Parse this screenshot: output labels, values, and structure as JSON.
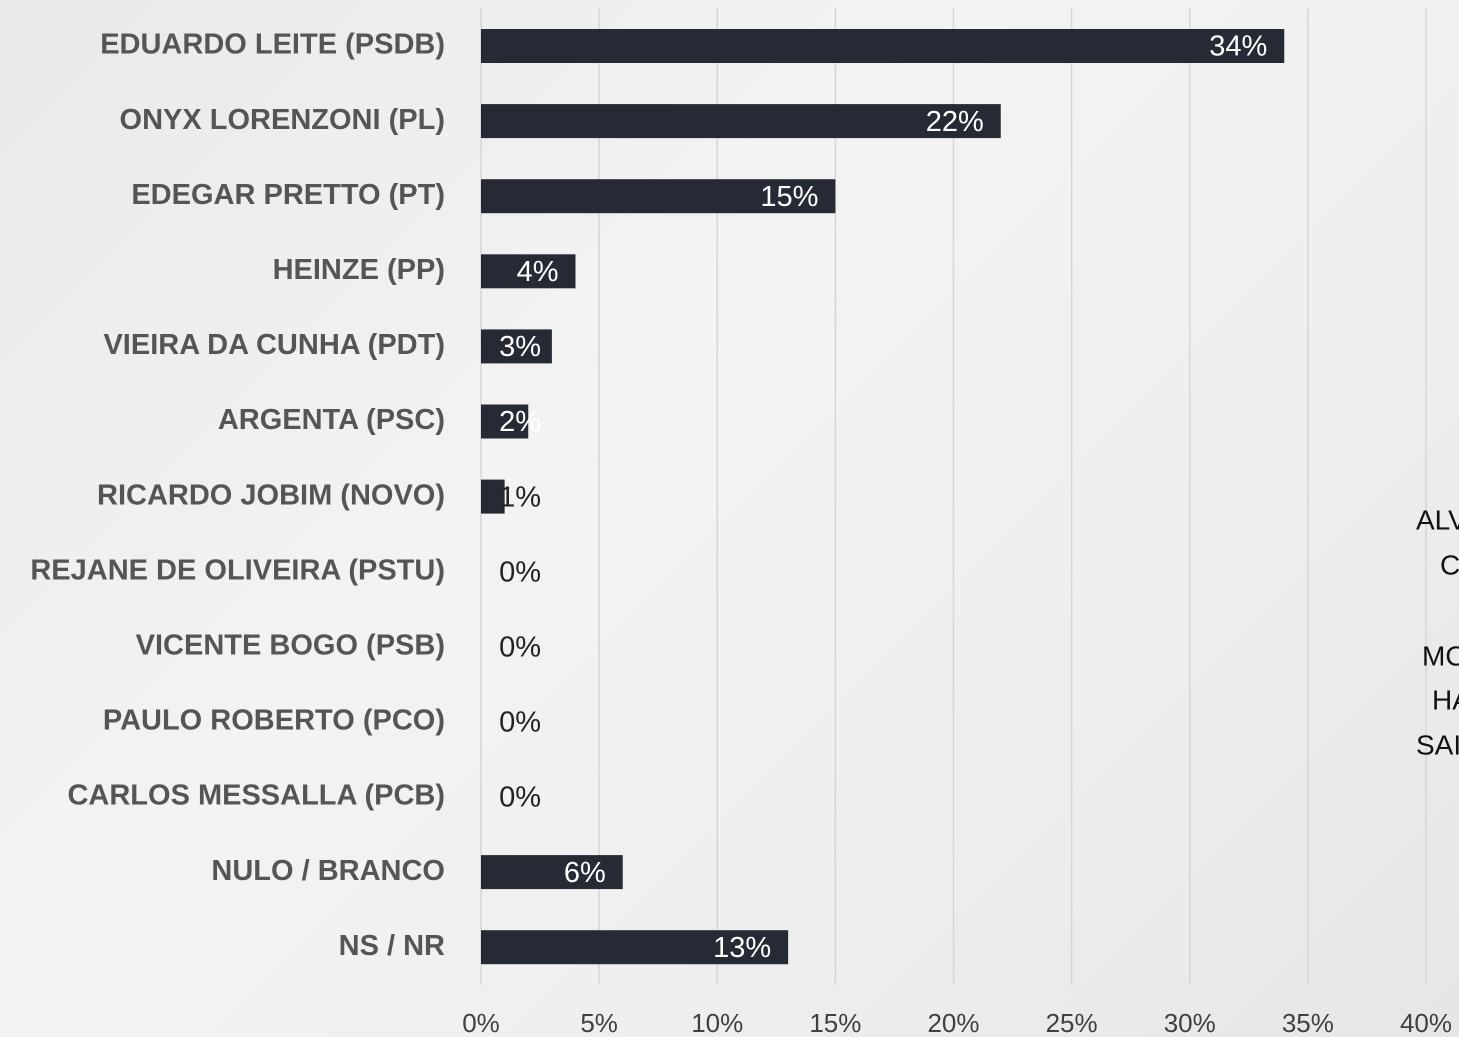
{
  "chart_data": {
    "type": "barh",
    "categories": [
      "EDUARDO LEITE (PSDB)",
      "ONYX LORENZONI (PL)",
      "EDEGAR PRETTO (PT)",
      "HEINZE (PP)",
      "VIEIRA DA CUNHA (PDT)",
      "ARGENTA (PSC)",
      "RICARDO JOBIM (NOVO)",
      "REJANE DE OLIVEIRA (PSTU)",
      "VICENTE BOGO (PSB)",
      "PAULO ROBERTO (PCO)",
      "CARLOS MESSALLA (PCB)",
      "NULO / BRANCO",
      "NS / NR"
    ],
    "values": [
      34,
      22,
      15,
      4,
      3,
      2,
      1,
      0,
      0,
      0,
      0,
      6,
      13
    ],
    "value_labels": [
      "34%",
      "22%",
      "15%",
      "4%",
      "3%",
      "2%",
      "1%",
      "0%",
      "0%",
      "0%",
      "0%",
      "6%",
      "13%"
    ],
    "color": "#252a35",
    "xlim": [
      0,
      40
    ],
    "xticks": [
      {
        "value": 0,
        "label": "0%"
      },
      {
        "value": 5,
        "label": "5%"
      },
      {
        "value": 10,
        "label": "10%"
      },
      {
        "value": 15,
        "label": "15%"
      },
      {
        "value": 20,
        "label": "20%"
      },
      {
        "value": 25,
        "label": "25%"
      },
      {
        "value": 30,
        "label": "30%"
      },
      {
        "value": 35,
        "label": "35%"
      },
      {
        "value": 40,
        "label": "40%"
      }
    ],
    "grid": true,
    "annotations": [
      "ALV",
      "C",
      "MO",
      "HA",
      "SAI"
    ]
  }
}
